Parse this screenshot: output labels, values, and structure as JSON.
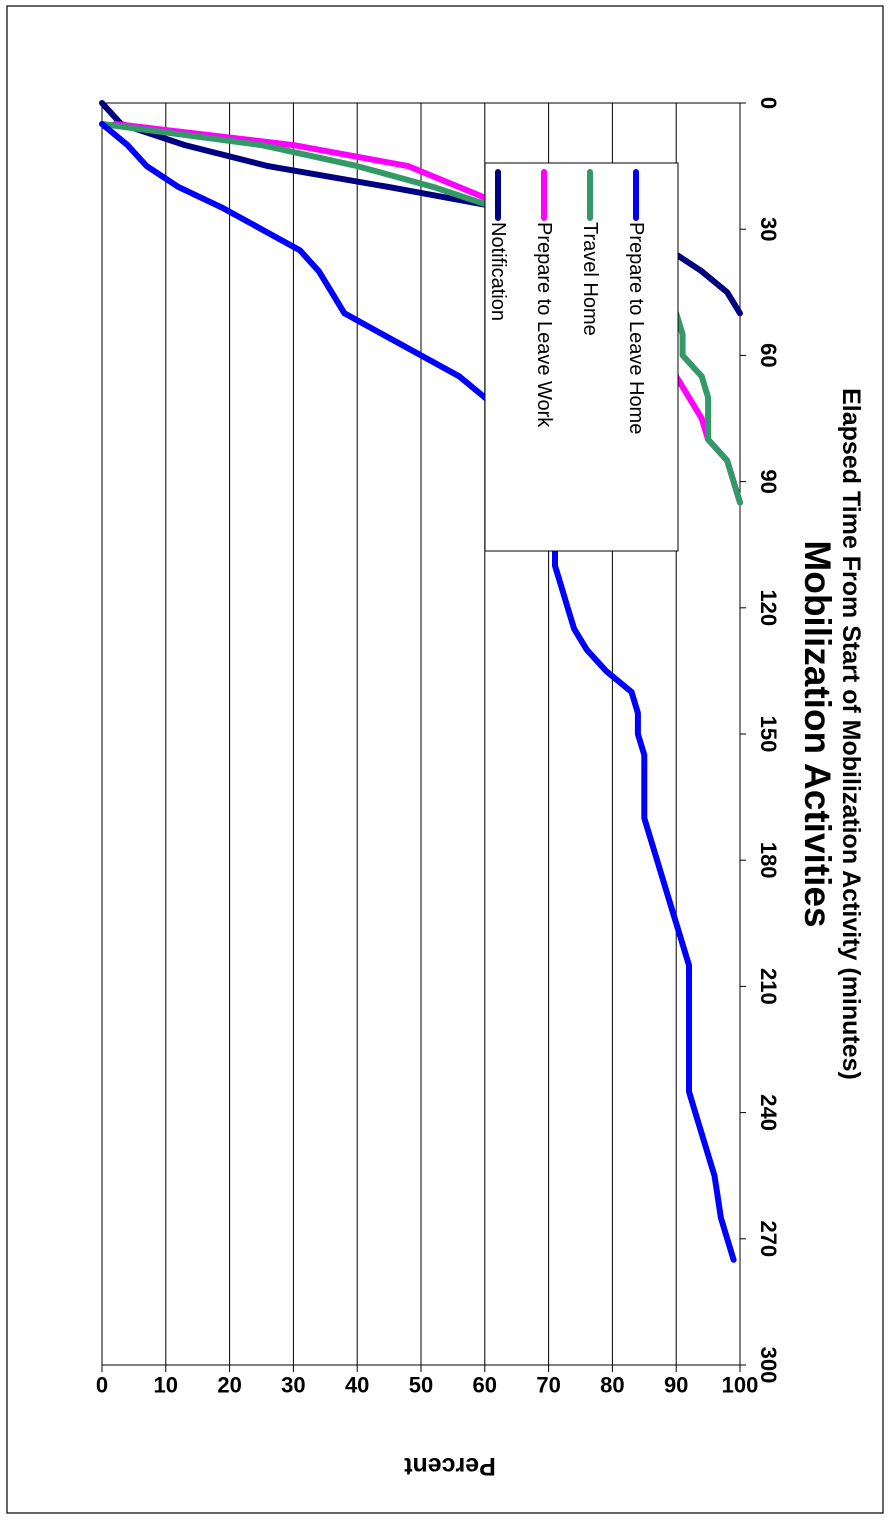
{
  "chart_data": {
    "type": "line",
    "title": "Mobilization Activities",
    "xlabel": "Elapsed Time From Start of Mobilization Activity (minutes)",
    "ylabel": "Percent",
    "xlim": [
      0,
      300
    ],
    "ylim": [
      0,
      100
    ],
    "x_ticks": [
      0,
      30,
      60,
      90,
      120,
      150,
      180,
      210,
      240,
      270,
      300
    ],
    "y_ticks": [
      0,
      10,
      20,
      30,
      40,
      50,
      60,
      70,
      80,
      90,
      100
    ],
    "x_tick_labels": [
      "0",
      "30",
      "60",
      "90",
      "120",
      "150",
      "180",
      "210",
      "240",
      "270",
      "300"
    ],
    "y_tick_labels": [
      "0",
      "10",
      "20",
      "30",
      "40",
      "50",
      "60",
      "70",
      "80",
      "90",
      "100"
    ],
    "grid": "horizontal lines at y ticks",
    "legend_position": "upper-right",
    "orientation": "rotated 90 degrees clockwise",
    "series": [
      {
        "name": "Notification",
        "color": "#000080",
        "points": [
          [
            0,
            0
          ],
          [
            5,
            3
          ],
          [
            10,
            13
          ],
          [
            15,
            26
          ],
          [
            20,
            45
          ],
          [
            25,
            63
          ],
          [
            30,
            85
          ],
          [
            35,
            89
          ],
          [
            40,
            94
          ],
          [
            45,
            98
          ],
          [
            50,
            100
          ]
        ]
      },
      {
        "name": "Prepare to Leave Work",
        "color": "#ff00ff",
        "points": [
          [
            5,
            2
          ],
          [
            10,
            30
          ],
          [
            15,
            48
          ],
          [
            20,
            56
          ],
          [
            25,
            64
          ],
          [
            30,
            66
          ],
          [
            35,
            76
          ],
          [
            40,
            79
          ],
          [
            45,
            81
          ],
          [
            50,
            84
          ],
          [
            55,
            85
          ],
          [
            60,
            85
          ],
          [
            65,
            90
          ],
          [
            70,
            92
          ],
          [
            75,
            94
          ],
          [
            80,
            95
          ],
          [
            85,
            98
          ],
          [
            90,
            99
          ],
          [
            95,
            100
          ]
        ]
      },
      {
        "name": "Travel Home",
        "color": "#339966",
        "points": [
          [
            5,
            0
          ],
          [
            10,
            25
          ],
          [
            15,
            40
          ],
          [
            20,
            52
          ],
          [
            25,
            62
          ],
          [
            30,
            70
          ],
          [
            35,
            84
          ],
          [
            40,
            85
          ],
          [
            45,
            87
          ],
          [
            50,
            90
          ],
          [
            55,
            91
          ],
          [
            60,
            91
          ],
          [
            65,
            94
          ],
          [
            70,
            95
          ],
          [
            75,
            95
          ],
          [
            80,
            95
          ],
          [
            85,
            98
          ],
          [
            90,
            99
          ],
          [
            95,
            100
          ]
        ]
      },
      {
        "name": "Prepare to Leave Home",
        "color": "#0000ff",
        "points": [
          [
            5,
            0
          ],
          [
            10,
            4
          ],
          [
            15,
            7
          ],
          [
            20,
            12
          ],
          [
            25,
            19
          ],
          [
            30,
            25
          ],
          [
            35,
            31
          ],
          [
            40,
            34
          ],
          [
            45,
            36
          ],
          [
            50,
            38
          ],
          [
            55,
            44
          ],
          [
            60,
            50
          ],
          [
            65,
            56
          ],
          [
            70,
            60
          ],
          [
            75,
            64
          ],
          [
            80,
            67
          ],
          [
            85,
            69
          ],
          [
            90,
            70
          ],
          [
            95,
            70
          ],
          [
            100,
            70.5
          ],
          [
            105,
            71
          ],
          [
            110,
            71
          ],
          [
            115,
            72
          ],
          [
            120,
            73
          ],
          [
            125,
            74
          ],
          [
            130,
            76
          ],
          [
            135,
            79
          ],
          [
            140,
            83
          ],
          [
            145,
            84
          ],
          [
            150,
            84
          ],
          [
            155,
            85
          ],
          [
            160,
            85
          ],
          [
            165,
            85
          ],
          [
            170,
            85
          ],
          [
            175,
            86
          ],
          [
            180,
            87
          ],
          [
            185,
            88
          ],
          [
            190,
            89
          ],
          [
            195,
            90
          ],
          [
            200,
            91
          ],
          [
            205,
            92
          ],
          [
            210,
            92
          ],
          [
            215,
            92
          ],
          [
            220,
            92
          ],
          [
            225,
            92
          ],
          [
            230,
            92
          ],
          [
            235,
            92
          ],
          [
            240,
            93
          ],
          [
            245,
            94
          ],
          [
            250,
            95
          ],
          [
            255,
            96
          ],
          [
            260,
            96.5
          ],
          [
            265,
            97
          ],
          [
            270,
            98
          ],
          [
            275,
            99
          ]
        ]
      }
    ]
  }
}
